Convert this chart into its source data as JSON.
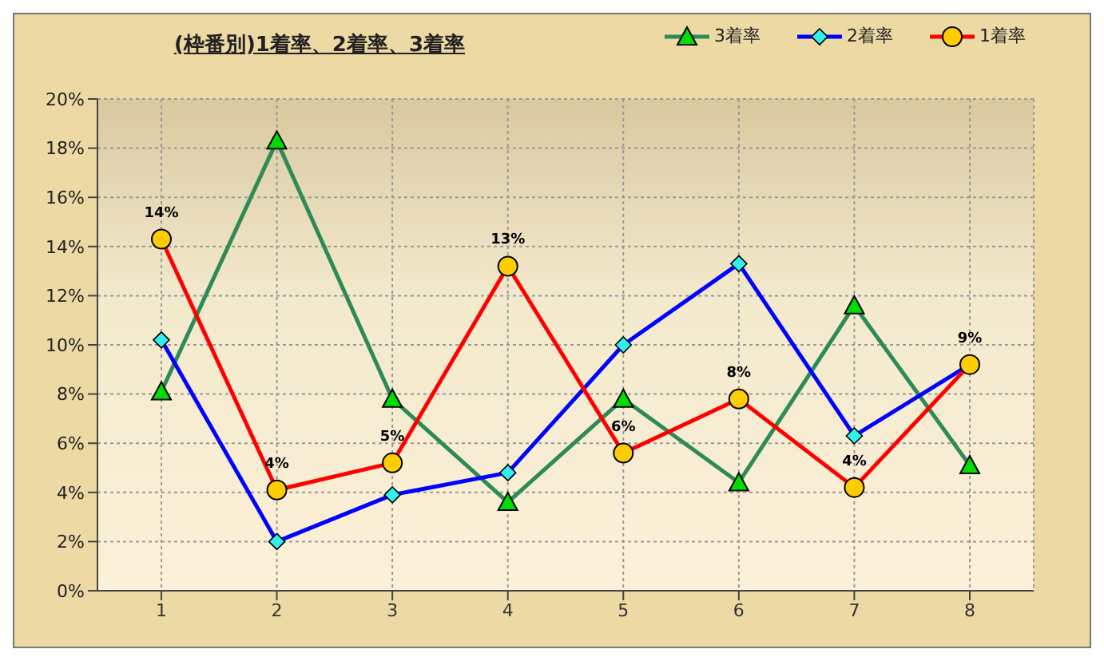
{
  "chart_data": {
    "type": "line",
    "title": "(枠番別)1着率、2着率、3着率",
    "categories": [
      "1",
      "2",
      "3",
      "4",
      "5",
      "6",
      "7",
      "8"
    ],
    "series": [
      {
        "name": "3着率",
        "color": "#2e8b57",
        "marker": "triangle",
        "values": [
          8.1,
          18.3,
          7.8,
          3.6,
          7.8,
          4.4,
          11.6,
          5.1
        ]
      },
      {
        "name": "2着率",
        "color": "#0000ff",
        "marker": "diamond",
        "values": [
          10.2,
          2.0,
          3.9,
          4.8,
          10.0,
          13.3,
          6.3,
          9.2
        ]
      },
      {
        "name": "1着率",
        "color": "#ff0000",
        "marker": "circle",
        "values": [
          14.3,
          4.1,
          5.2,
          13.2,
          5.6,
          7.8,
          4.2,
          9.2
        ],
        "value_labels": [
          "14%",
          "4%",
          "5%",
          "13%",
          "6%",
          "8%",
          "4%",
          "9%"
        ]
      }
    ],
    "ylim": [
      0,
      20
    ],
    "yticks": [
      {
        "value": 0,
        "label": "0%"
      },
      {
        "value": 2,
        "label": "2%"
      },
      {
        "value": 4,
        "label": "4%"
      },
      {
        "value": 6,
        "label": "6%"
      },
      {
        "value": 8,
        "label": "8%"
      },
      {
        "value": 10,
        "label": "10%"
      },
      {
        "value": 12,
        "label": "12%"
      },
      {
        "value": 14,
        "label": "14%"
      },
      {
        "value": 16,
        "label": "16%"
      },
      {
        "value": 18,
        "label": "18%"
      },
      {
        "value": 20,
        "label": "20%"
      }
    ],
    "grid": true,
    "legend": "top right"
  }
}
